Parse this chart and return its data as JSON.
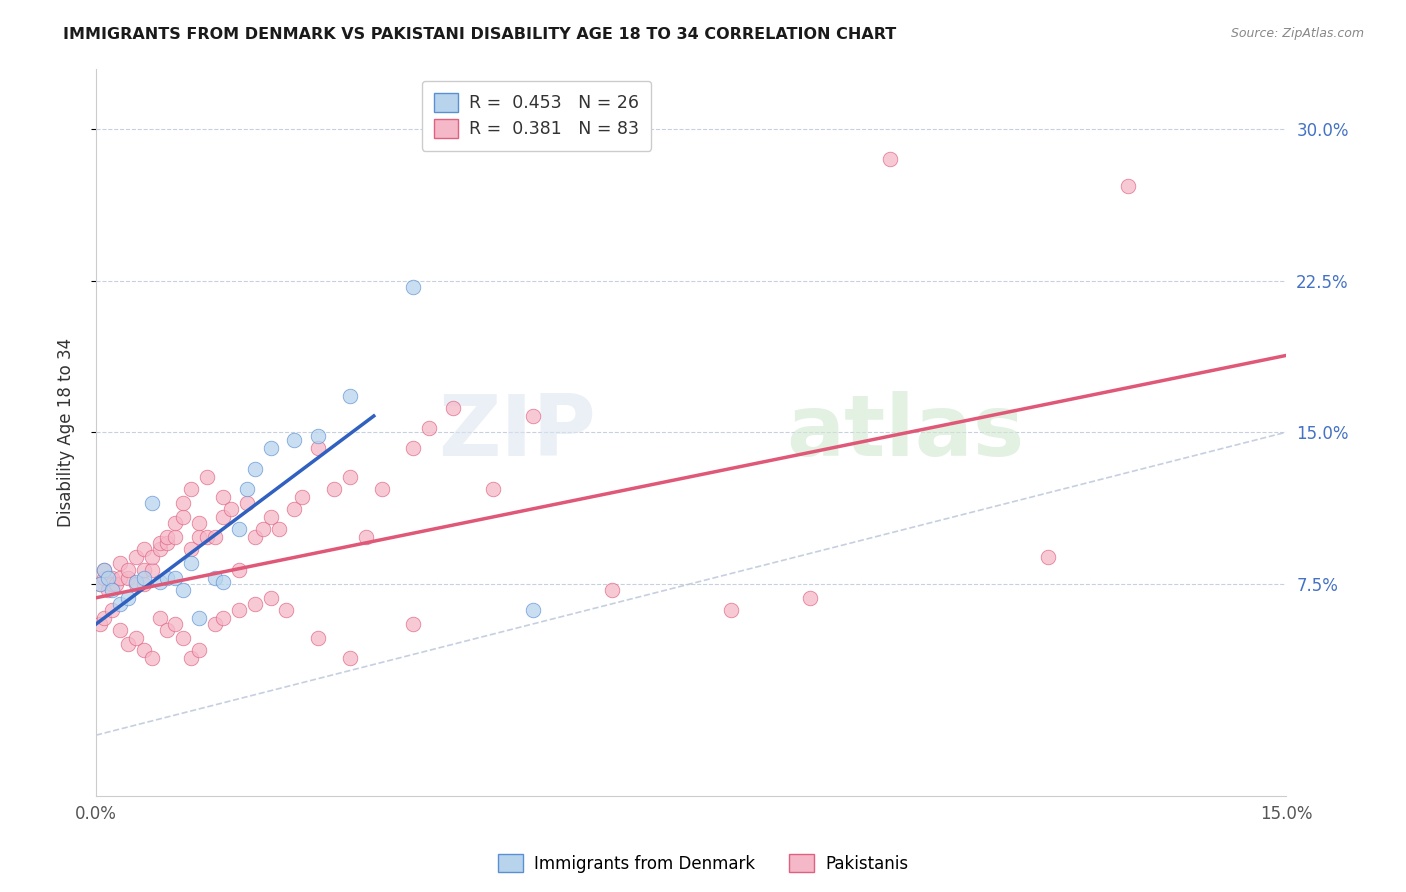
{
  "title": "IMMIGRANTS FROM DENMARK VS PAKISTANI DISABILITY AGE 18 TO 34 CORRELATION CHART",
  "source": "Source: ZipAtlas.com",
  "ylabel": "Disability Age 18 to 34",
  "ytick_labels": [
    "7.5%",
    "15.0%",
    "22.5%",
    "30.0%"
  ],
  "ytick_values": [
    0.075,
    0.15,
    0.225,
    0.3
  ],
  "xlim": [
    0.0,
    0.15
  ],
  "ylim": [
    -0.03,
    0.33
  ],
  "legend_label1": "Immigrants from Denmark",
  "legend_label2": "Pakistanis",
  "color_denmark_fill": "#b8d4ed",
  "color_pakistan_fill": "#f5b8c8",
  "color_denmark_edge": "#5b8fd4",
  "color_pakistan_edge": "#e06080",
  "color_denmark_line": "#3060c0",
  "color_pakistan_line": "#e05878",
  "color_diagonal": "#b8c4d8",
  "dk_x": [
    0.0005,
    0.001,
    0.0015,
    0.002,
    0.003,
    0.004,
    0.005,
    0.006,
    0.007,
    0.008,
    0.009,
    0.01,
    0.011,
    0.012,
    0.013,
    0.015,
    0.016,
    0.018,
    0.019,
    0.02,
    0.022,
    0.025,
    0.028,
    0.032,
    0.04,
    0.055
  ],
  "dk_y": [
    0.075,
    0.082,
    0.078,
    0.072,
    0.065,
    0.068,
    0.076,
    0.078,
    0.115,
    0.076,
    0.078,
    0.078,
    0.072,
    0.085,
    0.058,
    0.078,
    0.076,
    0.102,
    0.122,
    0.132,
    0.142,
    0.146,
    0.148,
    0.168,
    0.222,
    0.062
  ],
  "pk_x": [
    0.0005,
    0.001,
    0.001,
    0.0015,
    0.002,
    0.002,
    0.0025,
    0.003,
    0.003,
    0.004,
    0.004,
    0.005,
    0.005,
    0.006,
    0.006,
    0.006,
    0.007,
    0.007,
    0.008,
    0.008,
    0.009,
    0.009,
    0.01,
    0.01,
    0.011,
    0.011,
    0.012,
    0.012,
    0.013,
    0.013,
    0.014,
    0.014,
    0.015,
    0.016,
    0.016,
    0.017,
    0.018,
    0.019,
    0.02,
    0.021,
    0.022,
    0.023,
    0.025,
    0.026,
    0.028,
    0.03,
    0.032,
    0.034,
    0.036,
    0.04,
    0.042,
    0.045,
    0.05,
    0.055,
    0.065,
    0.08,
    0.09,
    0.1,
    0.12,
    0.13,
    0.0005,
    0.001,
    0.002,
    0.003,
    0.004,
    0.005,
    0.006,
    0.007,
    0.008,
    0.009,
    0.01,
    0.011,
    0.012,
    0.013,
    0.015,
    0.016,
    0.018,
    0.02,
    0.022,
    0.024,
    0.028,
    0.032,
    0.04
  ],
  "pk_y": [
    0.075,
    0.078,
    0.082,
    0.072,
    0.078,
    0.075,
    0.075,
    0.078,
    0.085,
    0.078,
    0.082,
    0.075,
    0.088,
    0.075,
    0.082,
    0.092,
    0.082,
    0.088,
    0.092,
    0.095,
    0.095,
    0.098,
    0.098,
    0.105,
    0.108,
    0.115,
    0.092,
    0.122,
    0.098,
    0.105,
    0.098,
    0.128,
    0.098,
    0.108,
    0.118,
    0.112,
    0.082,
    0.115,
    0.098,
    0.102,
    0.108,
    0.102,
    0.112,
    0.118,
    0.142,
    0.122,
    0.128,
    0.098,
    0.122,
    0.142,
    0.152,
    0.162,
    0.122,
    0.158,
    0.072,
    0.062,
    0.068,
    0.285,
    0.088,
    0.272,
    0.055,
    0.058,
    0.062,
    0.052,
    0.045,
    0.048,
    0.042,
    0.038,
    0.058,
    0.052,
    0.055,
    0.048,
    0.038,
    0.042,
    0.055,
    0.058,
    0.062,
    0.065,
    0.068,
    0.062,
    0.048,
    0.038,
    0.055
  ],
  "dk_trend_x": [
    0.0,
    0.035
  ],
  "dk_trend_y": [
    0.055,
    0.158
  ],
  "pk_trend_x": [
    0.0,
    0.15
  ],
  "pk_trend_y": [
    0.068,
    0.188
  ]
}
